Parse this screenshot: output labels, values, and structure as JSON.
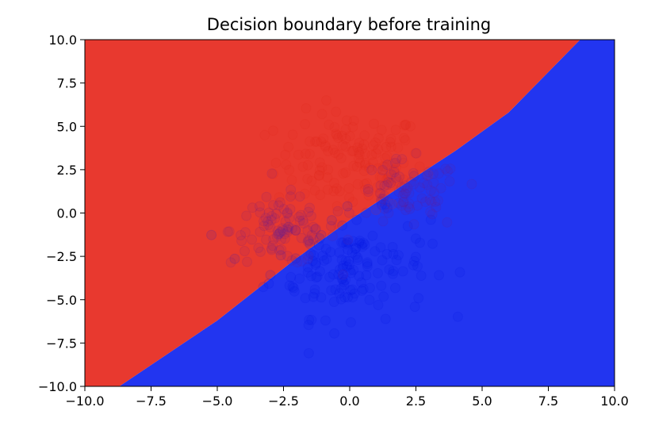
{
  "chart_data": {
    "type": "scatter",
    "title": "Decision boundary before training",
    "xlabel": "",
    "ylabel": "",
    "xlim": [
      -10.0,
      10.0
    ],
    "ylim": [
      -10.0,
      10.0
    ],
    "grid": false,
    "legend": "none",
    "x_ticks": [
      "−10.0",
      "−7.5",
      "−5.0",
      "−2.5",
      "0.0",
      "2.5",
      "5.0",
      "7.5",
      "10.0"
    ],
    "y_ticks": [
      "−10.0",
      "−7.5",
      "−5.0",
      "−2.5",
      "0.0",
      "2.5",
      "5.0",
      "7.5",
      "10.0"
    ],
    "decision_boundary": {
      "points": [
        [
          -8.7,
          -10.0
        ],
        [
          -5.0,
          -6.2
        ],
        [
          -2.0,
          -2.6
        ],
        [
          0.0,
          -0.4
        ],
        [
          2.0,
          1.6
        ],
        [
          4.0,
          3.6
        ],
        [
          6.0,
          5.8
        ],
        [
          8.7,
          10.0
        ]
      ],
      "region_above_color": "#e8392f",
      "region_below_color": "#2235f0"
    },
    "clusters": [
      {
        "class": "red",
        "center": [
          0.0,
          3.0
        ],
        "spread": 1.4,
        "count": 140,
        "color": "#e02b1e"
      },
      {
        "class": "blue",
        "center": [
          0.0,
          -3.0
        ],
        "spread": 1.5,
        "count": 150,
        "color": "#0018e0"
      },
      {
        "class": "purple-left",
        "center": [
          -2.5,
          -1.0
        ],
        "spread": 1.0,
        "count": 90,
        "color": "#6a1f8f"
      },
      {
        "class": "purple-right",
        "center": [
          2.2,
          1.0
        ],
        "spread": 1.0,
        "count": 80,
        "color": "#6a1f8f"
      }
    ]
  }
}
